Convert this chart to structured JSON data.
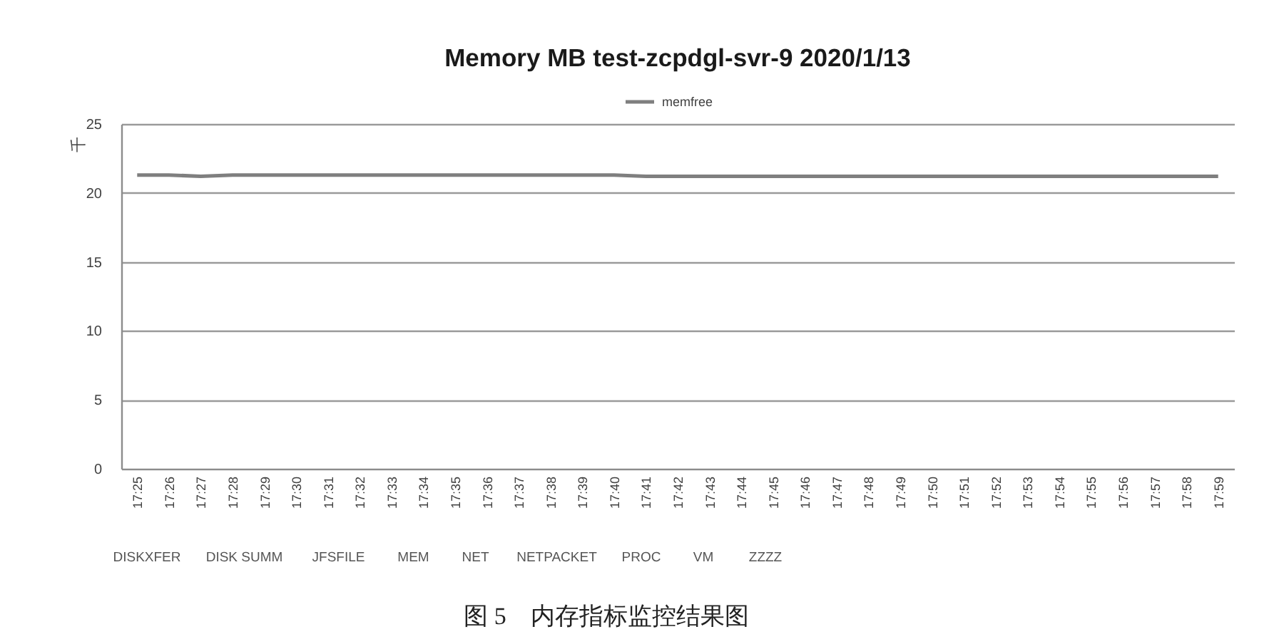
{
  "chart_data": {
    "type": "line",
    "title": "Memory MB test-zcpdgl-svr-9 2020/1/13",
    "ylabel": "千",
    "categories": [
      "17:25",
      "17:26",
      "17:27",
      "17:28",
      "17:29",
      "17:30",
      "17:31",
      "17:32",
      "17:33",
      "17:34",
      "17:35",
      "17:36",
      "17:37",
      "17:38",
      "17:39",
      "17:40",
      "17:41",
      "17:42",
      "17:43",
      "17:44",
      "17:45",
      "17:46",
      "17:47",
      "17:48",
      "17:49",
      "17:50",
      "17:51",
      "17:52",
      "17:53",
      "17:54",
      "17:55",
      "17:56",
      "17:57",
      "17:58",
      "17:59"
    ],
    "series": [
      {
        "name": "memfree",
        "color": "#7f7f7f",
        "values": [
          21.3,
          21.3,
          21.2,
          21.3,
          21.3,
          21.3,
          21.3,
          21.3,
          21.3,
          21.3,
          21.3,
          21.3,
          21.3,
          21.3,
          21.3,
          21.3,
          21.2,
          21.2,
          21.2,
          21.2,
          21.2,
          21.2,
          21.2,
          21.2,
          21.2,
          21.2,
          21.2,
          21.2,
          21.2,
          21.2,
          21.2,
          21.2,
          21.2,
          21.2,
          21.2
        ]
      }
    ],
    "ylim": [
      0,
      25
    ],
    "yticks": [
      0,
      5,
      10,
      15,
      20,
      25
    ],
    "grid": "y",
    "legend": "top",
    "marker": "none",
    "line_style": "solid",
    "annotations": [
      "图 5　内存指标监控结果图",
      "DISKXFER",
      "DISK SUMM",
      "JFSFILE",
      "MEM",
      "NET",
      "NETPACKET",
      "PROC",
      "VM",
      "ZZZZ"
    ]
  }
}
